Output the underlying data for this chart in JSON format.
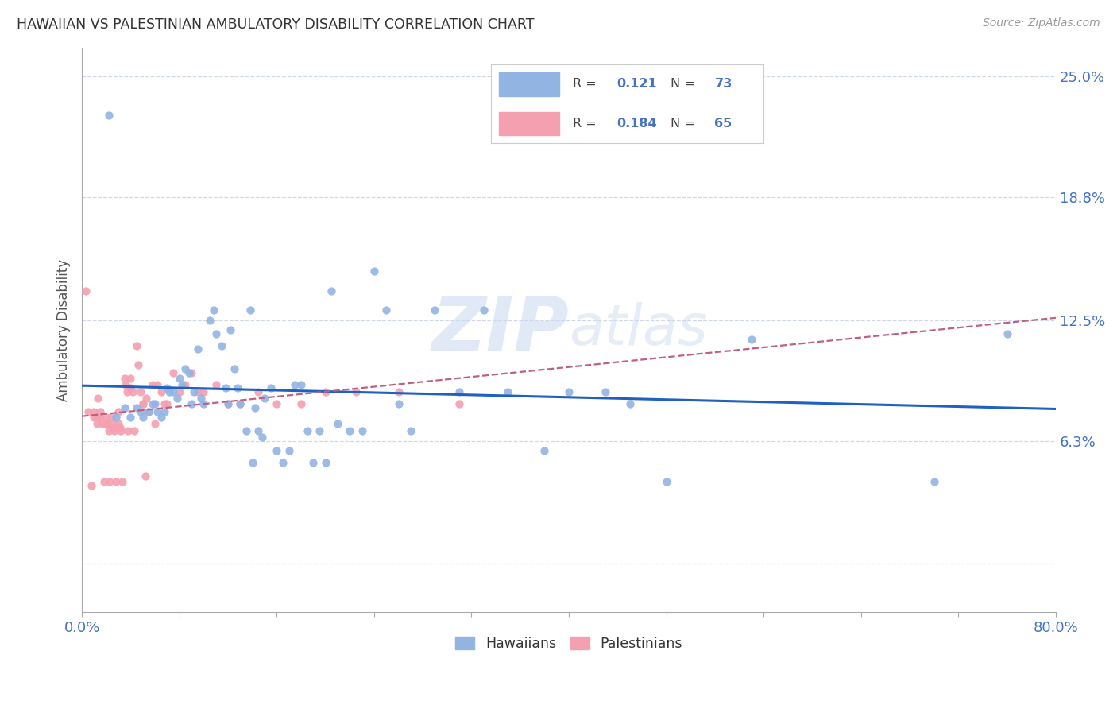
{
  "title": "HAWAIIAN VS PALESTINIAN AMBULATORY DISABILITY CORRELATION CHART",
  "source": "Source: ZipAtlas.com",
  "ylabel": "Ambulatory Disability",
  "xlim": [
    0.0,
    0.8
  ],
  "ylim": [
    -0.025,
    0.265
  ],
  "legend_hawaiians": "Hawaiians",
  "legend_palestinians": "Palestinians",
  "R_hawaiians": "0.121",
  "N_hawaiians": "73",
  "R_palestinians": "0.184",
  "N_palestinians": "65",
  "color_hawaiians": "#92b4e3",
  "color_palestinians": "#f4a0b0",
  "trendline_hawaiians_color": "#2060c0",
  "trendline_palestinians_color": "#c06080",
  "watermark_zip": "ZIP",
  "watermark_atlas": "atlas",
  "background_color": "#ffffff",
  "grid_color": "#d0d8e8",
  "ytick_color": "#4472c4",
  "xtick_color": "#4472c4",
  "hawaiians_x": [
    0.022,
    0.028,
    0.035,
    0.04,
    0.045,
    0.048,
    0.05,
    0.055,
    0.058,
    0.06,
    0.062,
    0.065,
    0.068,
    0.07,
    0.072,
    0.075,
    0.078,
    0.08,
    0.082,
    0.085,
    0.088,
    0.09,
    0.092,
    0.095,
    0.098,
    0.1,
    0.105,
    0.108,
    0.11,
    0.115,
    0.118,
    0.12,
    0.122,
    0.125,
    0.128,
    0.13,
    0.135,
    0.138,
    0.14,
    0.142,
    0.145,
    0.148,
    0.15,
    0.155,
    0.16,
    0.165,
    0.17,
    0.175,
    0.18,
    0.185,
    0.19,
    0.195,
    0.2,
    0.205,
    0.21,
    0.22,
    0.23,
    0.24,
    0.25,
    0.26,
    0.27,
    0.29,
    0.31,
    0.33,
    0.35,
    0.38,
    0.4,
    0.43,
    0.45,
    0.48,
    0.55,
    0.7,
    0.76
  ],
  "hawaiians_y": [
    0.23,
    0.075,
    0.08,
    0.075,
    0.08,
    0.078,
    0.075,
    0.078,
    0.082,
    0.082,
    0.078,
    0.075,
    0.078,
    0.09,
    0.088,
    0.088,
    0.085,
    0.095,
    0.092,
    0.1,
    0.098,
    0.082,
    0.088,
    0.11,
    0.085,
    0.082,
    0.125,
    0.13,
    0.118,
    0.112,
    0.09,
    0.082,
    0.12,
    0.1,
    0.09,
    0.082,
    0.068,
    0.13,
    0.052,
    0.08,
    0.068,
    0.065,
    0.085,
    0.09,
    0.058,
    0.052,
    0.058,
    0.092,
    0.092,
    0.068,
    0.052,
    0.068,
    0.052,
    0.14,
    0.072,
    0.068,
    0.068,
    0.15,
    0.13,
    0.082,
    0.068,
    0.13,
    0.088,
    0.13,
    0.088,
    0.058,
    0.088,
    0.088,
    0.082,
    0.042,
    0.115,
    0.042,
    0.118
  ],
  "palestinians_x": [
    0.003,
    0.005,
    0.008,
    0.01,
    0.01,
    0.012,
    0.012,
    0.013,
    0.015,
    0.015,
    0.017,
    0.018,
    0.02,
    0.02,
    0.021,
    0.022,
    0.023,
    0.024,
    0.025,
    0.026,
    0.027,
    0.028,
    0.03,
    0.03,
    0.031,
    0.032,
    0.033,
    0.035,
    0.036,
    0.037,
    0.038,
    0.04,
    0.04,
    0.042,
    0.043,
    0.045,
    0.046,
    0.048,
    0.05,
    0.05,
    0.052,
    0.053,
    0.055,
    0.058,
    0.06,
    0.062,
    0.065,
    0.068,
    0.07,
    0.075,
    0.08,
    0.085,
    0.09,
    0.095,
    0.1,
    0.11,
    0.12,
    0.13,
    0.145,
    0.16,
    0.18,
    0.2,
    0.225,
    0.26,
    0.31
  ],
  "palestinians_y": [
    0.14,
    0.078,
    0.04,
    0.078,
    0.075,
    0.075,
    0.072,
    0.085,
    0.078,
    0.075,
    0.072,
    0.042,
    0.075,
    0.072,
    0.072,
    0.068,
    0.042,
    0.075,
    0.072,
    0.07,
    0.068,
    0.042,
    0.078,
    0.072,
    0.07,
    0.068,
    0.042,
    0.095,
    0.092,
    0.088,
    0.068,
    0.095,
    0.09,
    0.088,
    0.068,
    0.112,
    0.102,
    0.088,
    0.082,
    0.082,
    0.045,
    0.085,
    0.078,
    0.092,
    0.072,
    0.092,
    0.088,
    0.082,
    0.082,
    0.098,
    0.088,
    0.092,
    0.098,
    0.088,
    0.088,
    0.092,
    0.082,
    0.082,
    0.088,
    0.082,
    0.082,
    0.088,
    0.088,
    0.088,
    0.082
  ]
}
